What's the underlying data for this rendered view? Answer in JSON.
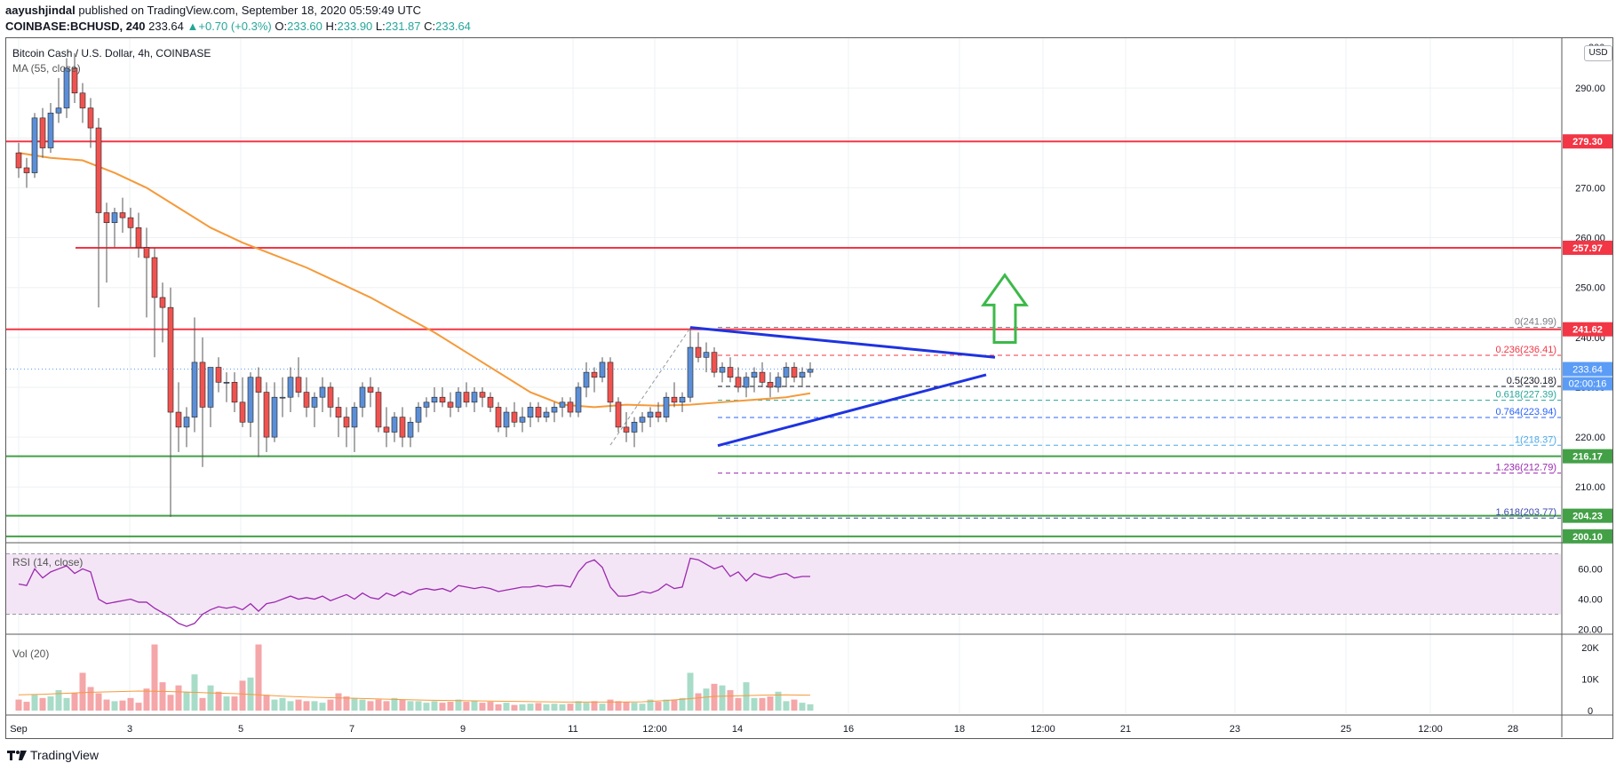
{
  "header": {
    "publisher": "aayushjindal",
    "published_text": "published on TradingView.com, September 18, 2020 05:59:49 UTC",
    "symbol": "COINBASE:BCHUSD, 240",
    "last": "233.64",
    "change": "+0.70 (+0.3%)",
    "o_label": "O:",
    "o": "233.60",
    "h_label": "H:",
    "h": "233.90",
    "l_label": "L:",
    "l": "231.87",
    "c_label": "C:",
    "c": "233.64"
  },
  "legend": {
    "title": "Bitcoin Cash / U.S. Dollar, 4h, COINBASE",
    "ma": "MA (55, close)",
    "rsi": "RSI (14, close)",
    "vol": "Vol (20)",
    "currency": "USD"
  },
  "footer": {
    "brand": "TradingView"
  },
  "colors": {
    "up": "#26a69a",
    "down": "#ef5350",
    "ma": "#f59a3a",
    "resistance": "#f23645",
    "support": "#43a047",
    "trend": "#1e33e0",
    "arrow": "#3cb94a",
    "rsi": "#9c27b0"
  },
  "chart_data": {
    "type": "candlestick",
    "x_ticks": [
      "Sep",
      "3",
      "5",
      "7",
      "9",
      "11",
      "12:00",
      "14",
      "16",
      "18",
      "12:00",
      "21",
      "23",
      "25",
      "12:00",
      "28"
    ],
    "price_axis": {
      "ylim": [
        199,
        300
      ],
      "ticks": [
        "290.00",
        "280.00",
        "270.00",
        "260.00",
        "250.00",
        "240.00",
        "230.00",
        "220.00",
        "210.00"
      ],
      "top_partial": "300"
    },
    "candles_ohlc": [
      [
        277,
        279,
        272,
        274
      ],
      [
        274,
        276,
        270,
        273
      ],
      [
        273,
        285,
        272,
        284
      ],
      [
        284,
        286,
        276,
        278
      ],
      [
        278,
        287,
        277,
        285
      ],
      [
        285,
        292,
        283,
        286
      ],
      [
        286,
        296,
        284,
        294
      ],
      [
        294,
        297,
        287,
        289
      ],
      [
        289,
        291,
        283,
        286
      ],
      [
        286,
        288,
        278,
        282
      ],
      [
        282,
        284,
        246,
        265
      ],
      [
        265,
        267,
        251,
        263
      ],
      [
        263,
        266,
        258,
        265
      ],
      [
        265,
        268,
        261,
        264
      ],
      [
        264,
        266,
        258,
        262
      ],
      [
        262,
        265,
        256,
        258
      ],
      [
        258,
        262,
        244,
        256
      ],
      [
        256,
        258,
        236,
        248
      ],
      [
        248,
        251,
        239,
        246
      ],
      [
        246,
        250,
        204,
        225
      ],
      [
        225,
        231,
        217,
        222
      ],
      [
        222,
        226,
        218,
        224
      ],
      [
        224,
        244,
        221,
        235
      ],
      [
        235,
        240,
        214,
        226
      ],
      [
        226,
        234,
        222,
        234
      ],
      [
        234,
        236,
        229,
        231
      ],
      [
        231,
        233,
        227,
        231
      ],
      [
        231,
        233,
        225,
        227
      ],
      [
        227,
        232,
        222,
        223
      ],
      [
        223,
        233,
        220,
        232
      ],
      [
        232,
        234,
        216,
        229
      ],
      [
        229,
        231,
        217,
        220
      ],
      [
        220,
        231,
        219,
        228
      ],
      [
        228,
        232,
        224,
        228
      ],
      [
        228,
        234,
        225,
        232
      ],
      [
        232,
        236,
        228,
        229
      ],
      [
        229,
        232,
        224,
        226
      ],
      [
        226,
        229,
        222,
        228
      ],
      [
        228,
        232,
        225,
        230
      ],
      [
        230,
        231,
        224,
        226
      ],
      [
        226,
        228,
        220,
        224
      ],
      [
        224,
        226,
        218,
        222
      ],
      [
        222,
        227,
        217,
        226
      ],
      [
        226,
        231,
        224,
        230
      ],
      [
        230,
        232,
        226,
        229
      ],
      [
        229,
        230,
        221,
        222
      ],
      [
        222,
        226,
        218,
        221
      ],
      [
        221,
        225,
        219,
        224
      ],
      [
        224,
        226,
        218,
        220
      ],
      [
        220,
        224,
        218,
        223
      ],
      [
        223,
        227,
        221,
        226
      ],
      [
        226,
        228,
        224,
        227
      ],
      [
        227,
        230,
        225,
        228
      ],
      [
        228,
        230,
        226,
        227
      ],
      [
        227,
        229,
        224,
        226
      ],
      [
        226,
        230,
        225,
        229
      ],
      [
        229,
        231,
        226,
        227
      ],
      [
        227,
        230,
        225,
        229
      ],
      [
        229,
        230,
        226,
        228
      ],
      [
        228,
        229,
        225,
        226
      ],
      [
        226,
        227,
        221,
        222
      ],
      [
        222,
        226,
        220,
        225
      ],
      [
        225,
        227,
        222,
        223
      ],
      [
        223,
        226,
        221,
        224
      ],
      [
        224,
        227,
        222,
        226
      ],
      [
        226,
        227,
        223,
        224
      ],
      [
        224,
        226,
        223,
        225
      ],
      [
        225,
        227,
        223,
        226
      ],
      [
        226,
        228,
        224,
        227
      ],
      [
        227,
        228,
        224,
        225
      ],
      [
        225,
        231,
        224,
        230
      ],
      [
        230,
        235,
        228,
        233
      ],
      [
        233,
        234,
        229,
        232
      ],
      [
        232,
        236,
        231,
        235
      ],
      [
        235,
        236,
        225,
        227
      ],
      [
        227,
        228,
        221,
        222
      ],
      [
        222,
        225,
        219,
        221
      ],
      [
        221,
        224,
        218,
        223
      ],
      [
        223,
        225,
        221,
        224
      ],
      [
        224,
        226,
        222,
        225
      ],
      [
        225,
        227,
        223,
        224
      ],
      [
        224,
        229,
        223,
        228
      ],
      [
        228,
        231,
        226,
        227
      ],
      [
        227,
        229,
        225,
        228
      ],
      [
        228,
        242,
        227,
        238
      ],
      [
        238,
        241,
        235,
        236
      ],
      [
        236,
        239,
        233,
        237
      ],
      [
        237,
        238,
        232,
        233
      ],
      [
        233,
        235,
        231,
        234
      ],
      [
        234,
        236,
        231,
        232
      ],
      [
        232,
        234,
        229,
        230
      ],
      [
        230,
        233,
        228,
        232
      ],
      [
        232,
        234,
        229,
        233
      ],
      [
        233,
        235,
        230,
        231
      ],
      [
        231,
        233,
        228,
        230
      ],
      [
        230,
        233,
        229,
        232
      ],
      [
        232,
        235,
        230,
        234
      ],
      [
        234,
        235,
        231,
        232
      ],
      [
        232,
        234,
        230,
        233
      ],
      [
        233,
        235,
        232,
        233.6
      ]
    ],
    "ma_55": [
      [
        0,
        277
      ],
      [
        4,
        276
      ],
      [
        8,
        275.5
      ],
      [
        12,
        273
      ],
      [
        16,
        270
      ],
      [
        20,
        266
      ],
      [
        24,
        262
      ],
      [
        28,
        259
      ],
      [
        32,
        256.5
      ],
      [
        36,
        254
      ],
      [
        40,
        251
      ],
      [
        44,
        248
      ],
      [
        48,
        244.5
      ],
      [
        52,
        241
      ],
      [
        56,
        237
      ],
      [
        60,
        233
      ],
      [
        64,
        229
      ],
      [
        68,
        226.5
      ],
      [
        72,
        226
      ],
      [
        76,
        226.5
      ],
      [
        80,
        226.3
      ],
      [
        84,
        226.5
      ],
      [
        88,
        227
      ],
      [
        92,
        227.5
      ],
      [
        96,
        228
      ],
      [
        99,
        228.8
      ]
    ],
    "horizontal_levels": [
      {
        "value": 279.3,
        "label": "279.30",
        "kind": "resistance"
      },
      {
        "value": 257.97,
        "label": "257.97",
        "kind": "resistance"
      },
      {
        "value": 241.62,
        "label": "241.62",
        "kind": "resistance"
      },
      {
        "value": 216.17,
        "label": "216.17",
        "kind": "support"
      },
      {
        "value": 204.23,
        "label": "204.23",
        "kind": "support"
      },
      {
        "value": 200.1,
        "label": "200.10",
        "kind": "support"
      }
    ],
    "fib_levels": [
      {
        "ratio": "0",
        "value": 241.99,
        "color": "#787b86"
      },
      {
        "ratio": "0.236",
        "value": 236.41,
        "color": "#f23645"
      },
      {
        "ratio": "0.5",
        "value": 230.18,
        "color": "#131722"
      },
      {
        "ratio": "0.618",
        "value": 227.39,
        "color": "#26a69a"
      },
      {
        "ratio": "0.764",
        "value": 223.94,
        "color": "#2962ff"
      },
      {
        "ratio": "1",
        "value": 218.37,
        "color": "#4aa8e8"
      },
      {
        "ratio": "1.236",
        "value": 212.79,
        "color": "#9c27b0"
      },
      {
        "ratio": "1.618",
        "value": 203.77,
        "color": "#3949ab"
      }
    ],
    "current_price": {
      "value": 233.64,
      "label": "233.64",
      "countdown": "02:00:16"
    },
    "rsi": {
      "ticks": [
        "60.00",
        "40.00",
        "20.00"
      ],
      "ylim": [
        18,
        72
      ],
      "bands": [
        30,
        70
      ],
      "values": [
        50,
        49,
        60,
        54,
        58,
        60,
        62,
        57,
        60,
        58,
        40,
        37,
        38,
        39,
        40,
        38,
        38,
        34,
        31,
        28,
        24,
        22,
        24,
        30,
        33,
        35,
        34,
        35,
        33,
        37,
        32,
        37,
        38,
        40,
        42,
        40,
        41,
        40,
        42,
        39,
        41,
        43,
        40,
        44,
        41,
        40,
        44,
        42,
        45,
        43,
        46,
        47,
        46,
        47,
        45,
        49,
        48,
        47,
        48,
        47,
        45,
        46,
        47,
        48,
        48,
        49,
        48,
        49,
        49,
        48,
        58,
        64,
        66,
        61,
        48,
        42,
        42,
        43,
        45,
        44,
        46,
        50,
        47,
        48,
        67,
        66,
        63,
        60,
        62,
        55,
        58,
        52,
        57,
        55,
        54,
        56,
        57,
        54,
        55,
        55
      ]
    },
    "volume": {
      "ticks": [
        "20K",
        "10K",
        "0"
      ],
      "ylim": [
        0,
        22000
      ],
      "values": [
        3500,
        2800,
        5000,
        4000,
        4500,
        6500,
        4000,
        5500,
        12000,
        7500,
        5500,
        3500,
        3000,
        3200,
        4000,
        2500,
        7000,
        21000,
        9000,
        5000,
        8000,
        6000,
        11500,
        4000,
        8000,
        6000,
        4500,
        4500,
        9500,
        10500,
        21000,
        5000,
        3500,
        4000,
        3000,
        3500,
        3000,
        3000,
        2500,
        3500,
        5500,
        4500,
        4000,
        3500,
        3000,
        3500,
        3000,
        4000,
        3500,
        3000,
        3000,
        2500,
        3000,
        2500,
        2800,
        3500,
        2800,
        3000,
        2500,
        2800,
        2000,
        2500,
        1800,
        2000,
        2200,
        2400,
        2000,
        2200,
        2000,
        2200,
        3000,
        2500,
        3000,
        2200,
        3500,
        3000,
        2800,
        2500,
        2200,
        3500,
        2800,
        3500,
        3500,
        4000,
        12000,
        5500,
        7000,
        8500,
        8000,
        6500,
        4000,
        9000,
        4000,
        4000,
        4500,
        6000,
        3000,
        3500,
        2500,
        2000
      ],
      "ma_20": [
        5000,
        5200,
        5500,
        5800,
        6000,
        6200,
        6100,
        5900,
        5600,
        5400,
        5000,
        4600,
        4300,
        4100,
        3900,
        3700,
        3500,
        3300,
        3200,
        3100,
        3000,
        2900,
        2800,
        2700,
        2700,
        2700,
        2800,
        3200,
        3800,
        4500,
        4700,
        4900,
        5000,
        4900
      ]
    }
  }
}
